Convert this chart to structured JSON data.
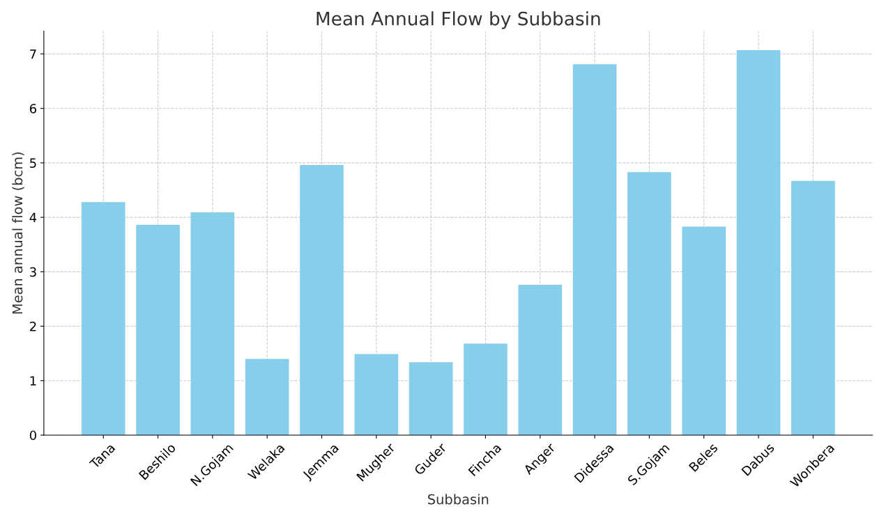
{
  "chart_data": {
    "type": "bar",
    "title": "Mean Annual Flow by Subbasin",
    "xlabel": "Subbasin",
    "ylabel": "Mean annual flow (bcm)",
    "categories": [
      "Tana",
      "Beshilo",
      "N.Gojam",
      "Welaka",
      "Jemma",
      "Mugher",
      "Guder",
      "Fincha",
      "Anger",
      "Didessa",
      "S.Gojam",
      "Beles",
      "Dabus",
      "Wonbera"
    ],
    "values": [
      4.28,
      3.86,
      4.09,
      1.4,
      4.96,
      1.49,
      1.34,
      1.68,
      2.76,
      6.81,
      4.83,
      3.83,
      7.07,
      4.67
    ],
    "color": "#87ceeb",
    "ylim": [
      0,
      7.42
    ],
    "yticks": [
      0,
      1,
      2,
      3,
      4,
      5,
      6,
      7
    ],
    "grid": true,
    "line_style": "dashed"
  }
}
